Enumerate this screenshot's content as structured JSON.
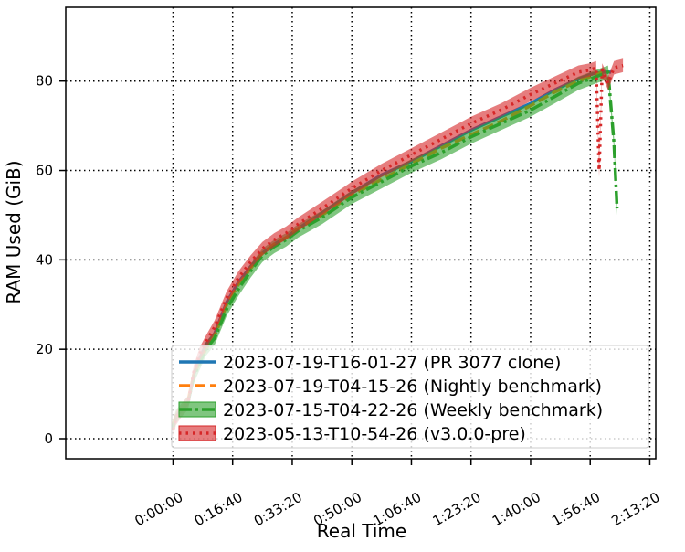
{
  "chart_data": {
    "type": "line",
    "title": "",
    "xlabel": "Real Time",
    "ylabel": "RAM Used (GiB)",
    "xlim": [
      -1800,
      8100
    ],
    "ylim": [
      -4.5,
      96.5
    ],
    "x_ticks": [
      {
        "value": 0,
        "label": "0:00:00"
      },
      {
        "value": 1000,
        "label": "0:16:40"
      },
      {
        "value": 2000,
        "label": "0:33:20"
      },
      {
        "value": 3000,
        "label": "0:50:00"
      },
      {
        "value": 4000,
        "label": "1:06:40"
      },
      {
        "value": 5000,
        "label": "1:23:20"
      },
      {
        "value": 6000,
        "label": "1:40:00"
      },
      {
        "value": 7000,
        "label": "1:56:40"
      },
      {
        "value": 8000,
        "label": "2:13:20"
      }
    ],
    "y_ticks": [
      {
        "value": 0,
        "label": "0"
      },
      {
        "value": 20,
        "label": "20"
      },
      {
        "value": 40,
        "label": "40"
      },
      {
        "value": 60,
        "label": "60"
      },
      {
        "value": 80,
        "label": "80"
      }
    ],
    "grid": true,
    "legend_position": "lower-right",
    "series": [
      {
        "name": "2023-07-19-T16-01-27 (PR 3077 clone)",
        "color": "#1f77b4",
        "style": "solid",
        "x": [
          0,
          50,
          150,
          250,
          350,
          450,
          550,
          700,
          900,
          1100,
          1300,
          1500,
          1700,
          1900,
          2100,
          2500,
          3000,
          3500,
          4000,
          4500,
          5000,
          5500,
          6000,
          6400,
          6800,
          7000,
          7200,
          7350
        ],
        "y": [
          2.5,
          5,
          6.5,
          8,
          14.5,
          18,
          21,
          23.5,
          30.5,
          35,
          38.5,
          41.5,
          43.5,
          45,
          47,
          50.5,
          55,
          59,
          62,
          65.5,
          69,
          72,
          75,
          78,
          80.5,
          81.5,
          82,
          82
        ]
      },
      {
        "name": "2023-07-19-T04-15-26 (Nightly benchmark)",
        "color": "#ff7f0e",
        "style": "dashed",
        "x": [
          0,
          50,
          150,
          250,
          350,
          450,
          550,
          700,
          900,
          1100,
          1300,
          1500,
          1700,
          1900,
          2100,
          2500,
          3000,
          3500,
          4000,
          4500,
          5000,
          5500,
          6000,
          6400,
          6800,
          7000,
          7200
        ],
        "y": [
          3,
          5.5,
          7,
          8.5,
          14.5,
          17,
          20,
          23,
          30,
          34.5,
          38,
          41.5,
          43.5,
          45,
          47,
          50,
          54.5,
          58,
          61.5,
          65,
          68,
          71,
          74.5,
          77.5,
          80,
          81,
          82
        ]
      },
      {
        "name": "2023-07-15-T04-22-26 (Weekly benchmark)",
        "color": "#2ca02c",
        "style": "dashdot",
        "band": true,
        "band_width": 1.5,
        "x": [
          0,
          50,
          150,
          250,
          350,
          450,
          550,
          700,
          900,
          1100,
          1300,
          1500,
          1700,
          1900,
          2100,
          2500,
          3000,
          3500,
          4000,
          4500,
          5000,
          5500,
          6000,
          6400,
          6800,
          7000,
          7200,
          7300,
          7400,
          7450
        ],
        "y": [
          2.5,
          5,
          6.5,
          8,
          14,
          17,
          20,
          22.5,
          29,
          33.5,
          37.5,
          41,
          43,
          44.5,
          46.5,
          49.5,
          54,
          57.5,
          61,
          64,
          67.5,
          70.5,
          73.5,
          76.5,
          79.5,
          80.5,
          81.5,
          82,
          66,
          51.5
        ]
      },
      {
        "name": "2023-05-13-T10-54-26 (v3.0.0-pre)",
        "color": "#d62728",
        "style": "dotted",
        "band": true,
        "band_width": 1.5,
        "x": [
          0,
          50,
          150,
          250,
          350,
          450,
          550,
          700,
          900,
          1100,
          1300,
          1500,
          1700,
          1900,
          2100,
          2500,
          3000,
          3500,
          4000,
          4500,
          5000,
          5500,
          6000,
          6400,
          6800,
          7000,
          7100,
          7150,
          7200,
          7300,
          7400,
          7550
        ],
        "y": [
          2,
          4.5,
          6.5,
          8,
          15,
          19,
          21.5,
          25,
          31.5,
          36,
          39.5,
          42.5,
          44.5,
          46,
          48,
          51.5,
          56,
          60,
          63.5,
          67,
          70.5,
          73.5,
          77,
          79.5,
          82,
          82.5,
          83,
          60,
          82.5,
          79.5,
          83,
          83.5
        ]
      }
    ]
  }
}
